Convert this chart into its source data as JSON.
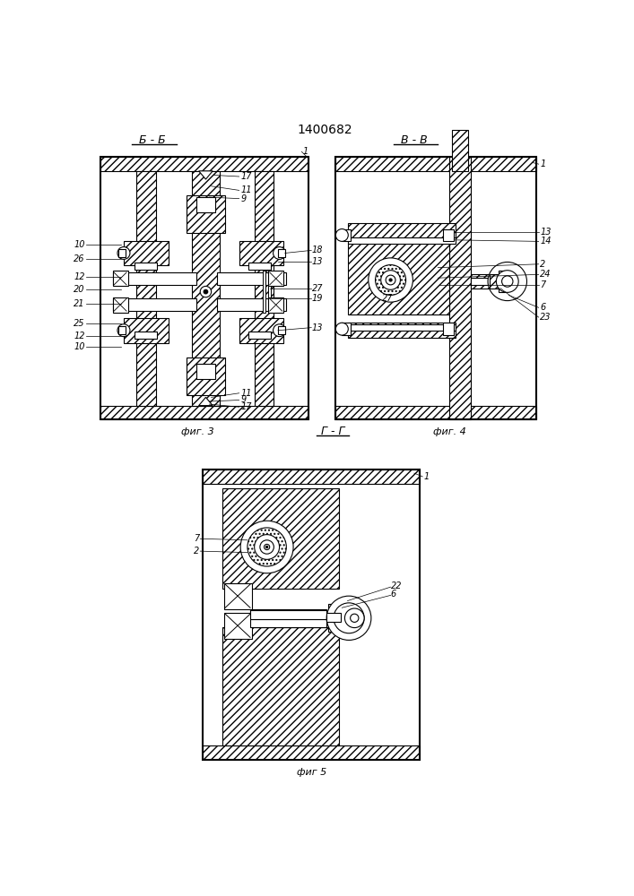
{
  "title": "1400682",
  "bg_color": "#ffffff",
  "fig3_label": "Б - Б",
  "fig4_label": "В - В",
  "fig5_label": "Г - Г",
  "caption3": "фиг. 3",
  "caption4": "фиг. 4",
  "caption5": "фиг 5"
}
